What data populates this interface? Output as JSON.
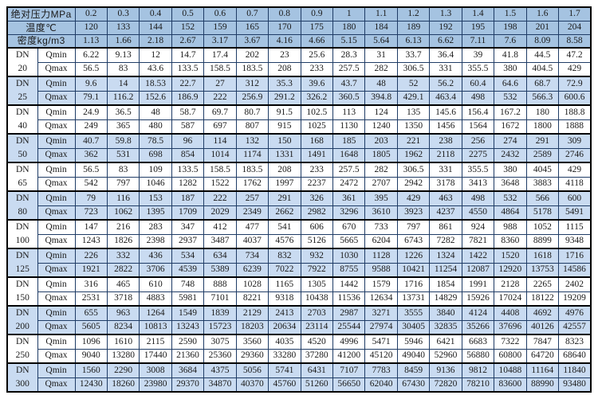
{
  "table": {
    "header_rows": [
      {
        "label": "绝对压力MPa",
        "values": [
          "0.2",
          "0.3",
          "0.4",
          "0.5",
          "0.6",
          "0.7",
          "0.8",
          "0.9",
          "1",
          "1.1",
          "1.2",
          "1.3",
          "1.4",
          "1.5",
          "1.6",
          "1.7"
        ]
      },
      {
        "label": "温度℃",
        "values": [
          "120",
          "133",
          "144",
          "152",
          "159",
          "165",
          "170",
          "175",
          "180",
          "184",
          "189",
          "192",
          "195",
          "198",
          "201",
          "204"
        ]
      },
      {
        "label": "密度kg/m3",
        "values": [
          "1.13",
          "1.66",
          "2.18",
          "2.67",
          "3.17",
          "3.67",
          "4.16",
          "4.66",
          "5.15",
          "5.64",
          "6.13",
          "6.62",
          "7.11",
          "7.6",
          "8.09",
          "8.58"
        ]
      }
    ],
    "dn_label": "DN",
    "qmin_label": "Qmin",
    "qmax_label": "Qmax",
    "groups": [
      {
        "dn": "20",
        "shaded": false,
        "qmin": [
          "6.22",
          "9.13",
          "12",
          "14.7",
          "17.4",
          "202",
          "23",
          "25.6",
          "28.3",
          "31",
          "33.7",
          "36.4",
          "39",
          "41.8",
          "44.5",
          "47.2"
        ],
        "qmax": [
          "56.5",
          "83",
          "43.6",
          "133.5",
          "158.5",
          "183.5",
          "208",
          "233",
          "257.5",
          "282",
          "306.5",
          "331",
          "355.5",
          "380",
          "404.5",
          "429"
        ]
      },
      {
        "dn": "25",
        "shaded": true,
        "qmin": [
          "9.6",
          "14",
          "18.53",
          "22.7",
          "27",
          "312",
          "35.3",
          "39.6",
          "43.7",
          "48",
          "52",
          "56.2",
          "60.4",
          "64.6",
          "68.7",
          "72.9"
        ],
        "qmax": [
          "79.1",
          "116.2",
          "152.6",
          "186.9",
          "222",
          "256.9",
          "291.2",
          "326.2",
          "360.5",
          "394.8",
          "429.1",
          "463.4",
          "498",
          "532",
          "566.3",
          "600.6"
        ]
      },
      {
        "dn": "40",
        "shaded": false,
        "qmin": [
          "24.9",
          "36.5",
          "48",
          "58.7",
          "69.7",
          "80.7",
          "91.5",
          "102.5",
          "113",
          "124",
          "135",
          "145.6",
          "156.4",
          "167.2",
          "180",
          "188.8"
        ],
        "qmax": [
          "249",
          "365",
          "480",
          "587",
          "697",
          "807",
          "915",
          "1025",
          "1130",
          "1240",
          "1350",
          "1456",
          "1564",
          "1672",
          "1800",
          "1888"
        ]
      },
      {
        "dn": "50",
        "shaded": true,
        "qmin": [
          "40.7",
          "59.8",
          "78.5",
          "96",
          "114",
          "132",
          "150",
          "168",
          "185",
          "203",
          "221",
          "238",
          "256",
          "274",
          "291",
          "309"
        ],
        "qmax": [
          "362",
          "531",
          "698",
          "854",
          "1014",
          "1174",
          "1331",
          "1491",
          "1648",
          "1805",
          "1962",
          "2118",
          "2275",
          "2432",
          "2589",
          "2746"
        ]
      },
      {
        "dn": "65",
        "shaded": false,
        "qmin": [
          "56.5",
          "83",
          "109",
          "133.5",
          "158.5",
          "183.5",
          "208",
          "233",
          "257.5",
          "282",
          "306.5",
          "331",
          "355.5",
          "380",
          "4045",
          "429"
        ],
        "qmax": [
          "542",
          "797",
          "1046",
          "1282",
          "1522",
          "1762",
          "1997",
          "2237",
          "2472",
          "2707",
          "2942",
          "3178",
          "3413",
          "3648",
          "3883",
          "4118"
        ]
      },
      {
        "dn": "80",
        "shaded": true,
        "qmin": [
          "79",
          "116",
          "153",
          "187",
          "222",
          "257",
          "291",
          "326",
          "361",
          "395",
          "429",
          "463",
          "498",
          "532",
          "566",
          "600"
        ],
        "qmax": [
          "723",
          "1062",
          "1395",
          "1709",
          "2029",
          "2349",
          "2662",
          "2982",
          "3296",
          "3610",
          "3923",
          "4237",
          "4550",
          "4864",
          "5178",
          "5491"
        ]
      },
      {
        "dn": "100",
        "shaded": false,
        "qmin": [
          "147",
          "216",
          "283",
          "347",
          "412",
          "477",
          "541",
          "606",
          "670",
          "733",
          "797",
          "861",
          "924",
          "988",
          "1052",
          "1115"
        ],
        "qmax": [
          "1243",
          "1826",
          "2398",
          "2937",
          "3487",
          "4037",
          "4576",
          "5126",
          "5665",
          "6204",
          "6743",
          "7282",
          "7821",
          "8360",
          "8899",
          "9348"
        ]
      },
      {
        "dn": "125",
        "shaded": true,
        "qmin": [
          "226",
          "332",
          "436",
          "534",
          "634",
          "734",
          "832",
          "932",
          "1030",
          "1128",
          "1226",
          "1324",
          "1422",
          "1520",
          "1618",
          "1716"
        ],
        "qmax": [
          "1921",
          "2822",
          "3706",
          "4539",
          "5389",
          "6239",
          "7022",
          "7922",
          "8755",
          "9588",
          "10421",
          "11254",
          "12087",
          "12920",
          "13753",
          "14586"
        ]
      },
      {
        "dn": "150",
        "shaded": false,
        "qmin": [
          "316",
          "465",
          "610",
          "748",
          "888",
          "1028",
          "1165",
          "1305",
          "1442",
          "1579",
          "1716",
          "1854",
          "1991",
          "2128",
          "2265",
          "2402"
        ],
        "qmax": [
          "2531",
          "3718",
          "4883",
          "5981",
          "7101",
          "8221",
          "9318",
          "10438",
          "11536",
          "12634",
          "13731",
          "14829",
          "15926",
          "17024",
          "18122",
          "19209"
        ]
      },
      {
        "dn": "200",
        "shaded": true,
        "qmin": [
          "655",
          "963",
          "1264",
          "1549",
          "1839",
          "2129",
          "2413",
          "2703",
          "2987",
          "3271",
          "3555",
          "3840",
          "4124",
          "4408",
          "4692",
          "4976"
        ],
        "qmax": [
          "5605",
          "8234",
          "10813",
          "13243",
          "15723",
          "18203",
          "20634",
          "23114",
          "25544",
          "27974",
          "30405",
          "32835",
          "35266",
          "37696",
          "40126",
          "42557"
        ]
      },
      {
        "dn": "250",
        "shaded": false,
        "qmin": [
          "1096",
          "1610",
          "2115",
          "2590",
          "3075",
          "3560",
          "4035",
          "4520",
          "4996",
          "5471",
          "5946",
          "6421",
          "6683",
          "7322",
          "7847",
          "8323"
        ],
        "qmax": [
          "9040",
          "13280",
          "17440",
          "21360",
          "25360",
          "29360",
          "33280",
          "37280",
          "41200",
          "45120",
          "49040",
          "52960",
          "56880",
          "60800",
          "64720",
          "68640"
        ]
      },
      {
        "dn": "300",
        "shaded": true,
        "qmin": [
          "1560",
          "2290",
          "3008",
          "3684",
          "4375",
          "5056",
          "5741",
          "6431",
          "7107",
          "7783",
          "8459",
          "9136",
          "9812",
          "10488",
          "11164",
          "11840"
        ],
        "qmax": [
          "12430",
          "18260",
          "23980",
          "29370",
          "34870",
          "40370",
          "45760",
          "51260",
          "56650",
          "62040",
          "67430",
          "72820",
          "78210",
          "83600",
          "88990",
          "93480"
        ]
      }
    ]
  },
  "colors": {
    "header_bg": "#a5c3e1",
    "shaded_row_bg": "#c9dbf1",
    "plain_row_bg": "#ffffff",
    "thin_border": "#1f3c66",
    "thick_border": "#000000",
    "text": "#1a1a1a"
  }
}
